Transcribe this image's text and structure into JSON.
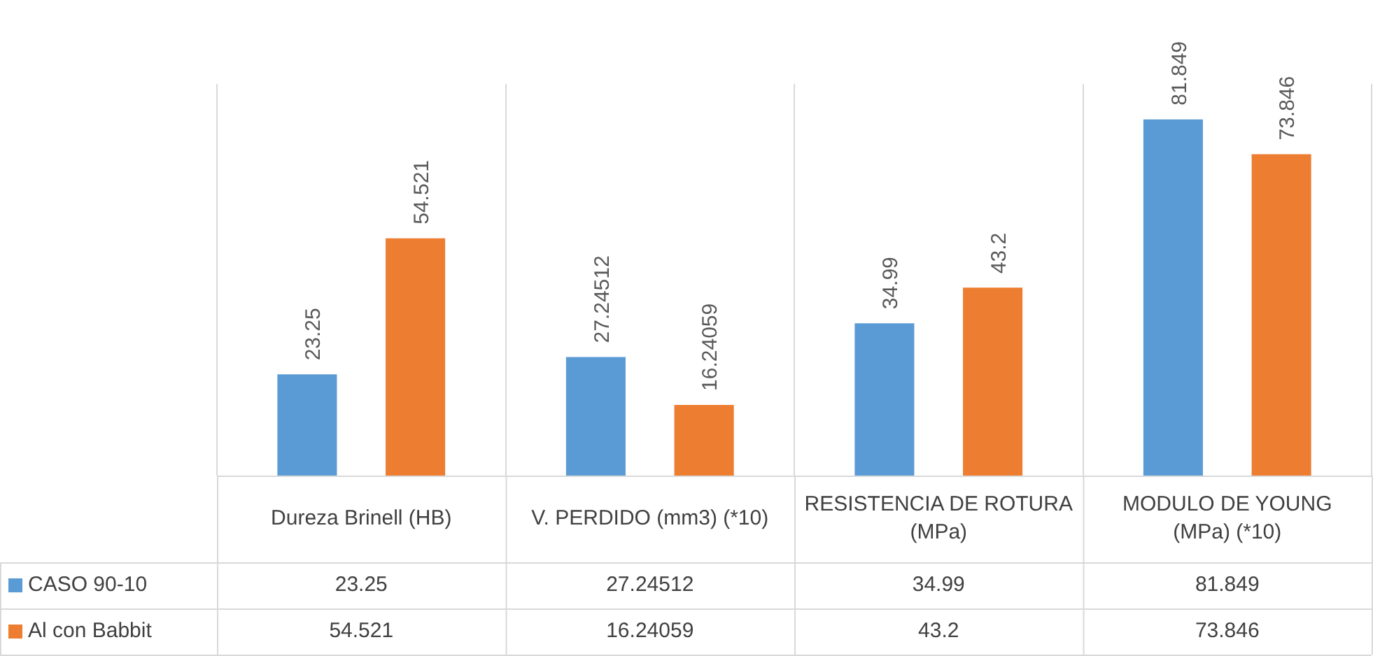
{
  "chart_data": {
    "type": "bar",
    "categories": [
      "Dureza Brinell (HB)",
      "V. PERDIDO (mm3) (*10)",
      "RESISTENCIA DE ROTURA (MPa)",
      "MODULO DE YOUNG (MPa) (*10)"
    ],
    "series": [
      {
        "name": "CASO 90-10",
        "color": "#5b9bd5",
        "values": [
          23.25,
          27.24512,
          34.99,
          81.849
        ],
        "value_labels": [
          "23.25",
          "27.24512",
          "34.99",
          "81.849"
        ]
      },
      {
        "name": "Al con Babbit",
        "color": "#ed7d31",
        "values": [
          54.521,
          16.24059,
          43.2,
          73.846
        ],
        "value_labels": [
          "54.521",
          "16.24059",
          "43.2",
          "73.846"
        ]
      }
    ],
    "annotations": [
      "23.25",
      "27.24512",
      "34.99",
      "81.849",
      "54.521",
      "16.24059",
      "43.2",
      "73.846"
    ],
    "grid": "x",
    "legend": "bottom"
  }
}
